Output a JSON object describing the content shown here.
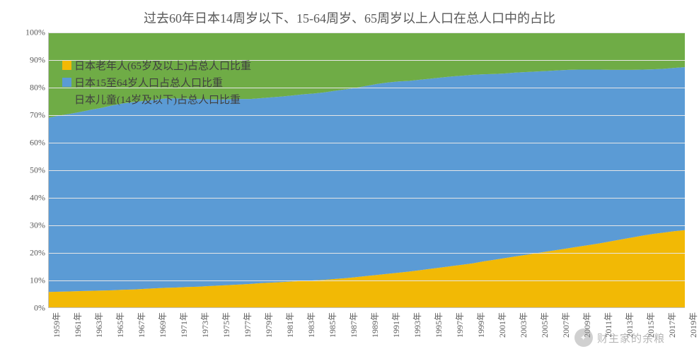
{
  "title": "过去60年日本14周岁以下、15-64周岁、65周岁以上人口在总人口中的占比",
  "title_fontsize": 18,
  "title_color": "#595959",
  "chart": {
    "type": "area-stacked",
    "background_color": "#ffffff",
    "grid_color": "#e6e6e6",
    "axis_color": "#bfbfbf",
    "tick_color": "#595959",
    "tick_fontsize": 12,
    "ylim": [
      0,
      100
    ],
    "ytick_step": 10,
    "y_tick_suffix": "%",
    "x_years": [
      1959,
      1960,
      1961,
      1962,
      1963,
      1964,
      1965,
      1966,
      1967,
      1968,
      1969,
      1970,
      1971,
      1972,
      1973,
      1974,
      1975,
      1976,
      1977,
      1978,
      1979,
      1980,
      1981,
      1982,
      1983,
      1984,
      1985,
      1986,
      1987,
      1988,
      1989,
      1990,
      1991,
      1992,
      1993,
      1994,
      1995,
      1996,
      1997,
      1998,
      1999,
      2000,
      2001,
      2002,
      2003,
      2004,
      2005,
      2006,
      2007,
      2008,
      2009,
      2010,
      2011,
      2012,
      2013,
      2014,
      2015,
      2016,
      2017,
      2018,
      2019
    ],
    "x_tick_indices": [
      0,
      2,
      4,
      6,
      8,
      10,
      12,
      14,
      16,
      18,
      20,
      22,
      24,
      26,
      28,
      30,
      32,
      34,
      36,
      38,
      40,
      42,
      44,
      46,
      48,
      50,
      52,
      54,
      56,
      58,
      60
    ],
    "x_tick_suffix": "年",
    "series": [
      {
        "key": "elderly",
        "label": "日本老年人(65岁及以上)占总人口比重",
        "color": "#f2b905",
        "values": [
          5.6,
          5.7,
          5.8,
          5.9,
          6.0,
          6.1,
          6.2,
          6.4,
          6.5,
          6.7,
          6.9,
          7.1,
          7.2,
          7.4,
          7.5,
          7.7,
          7.9,
          8.1,
          8.3,
          8.5,
          8.8,
          9.0,
          9.2,
          9.4,
          9.6,
          9.8,
          10.0,
          10.3,
          10.6,
          11.0,
          11.4,
          11.8,
          12.2,
          12.6,
          13.0,
          13.5,
          14.0,
          14.5,
          15.0,
          15.5,
          16.0,
          16.7,
          17.3,
          17.9,
          18.5,
          19.1,
          19.7,
          20.3,
          20.9,
          21.5,
          22.1,
          22.7,
          23.3,
          24.0,
          24.7,
          25.4,
          26.1,
          26.7,
          27.2,
          27.7,
          28.1
        ]
      },
      {
        "key": "working",
        "label": "日本15至64岁人口占总人口比重",
        "color": "#5b9bd5",
        "values": [
          63.4,
          64.1,
          64.6,
          65.2,
          65.9,
          66.5,
          67.3,
          67.8,
          68.2,
          68.4,
          68.6,
          68.9,
          68.8,
          68.5,
          68.3,
          68.0,
          67.7,
          67.6,
          67.5,
          67.3,
          67.3,
          67.4,
          67.5,
          67.7,
          67.9,
          68.0,
          68.2,
          68.5,
          68.7,
          68.9,
          69.2,
          69.5,
          69.6,
          69.6,
          69.4,
          69.3,
          69.2,
          69.1,
          69.0,
          68.8,
          68.6,
          68.1,
          67.6,
          67.2,
          66.9,
          66.5,
          66.1,
          65.7,
          65.3,
          64.9,
          64.4,
          63.8,
          63.2,
          62.4,
          61.7,
          61.0,
          60.4,
          59.9,
          59.6,
          59.4,
          59.3
        ]
      },
      {
        "key": "children",
        "label": "日本儿童(14岁及以下)占总人口比重",
        "color": "#6fac46",
        "values": [
          31.0,
          30.2,
          29.6,
          28.9,
          28.1,
          27.4,
          26.5,
          25.8,
          25.3,
          24.9,
          24.5,
          24.0,
          24.0,
          24.1,
          24.2,
          24.3,
          24.4,
          24.3,
          24.2,
          24.2,
          23.9,
          23.6,
          23.3,
          22.9,
          22.5,
          22.2,
          21.8,
          21.2,
          20.7,
          20.1,
          19.4,
          18.7,
          18.2,
          17.8,
          17.6,
          17.2,
          16.8,
          16.4,
          16.0,
          15.7,
          15.4,
          15.2,
          15.1,
          14.9,
          14.6,
          14.4,
          14.2,
          14.0,
          13.8,
          13.6,
          13.5,
          13.5,
          13.5,
          13.6,
          13.6,
          13.6,
          13.5,
          13.4,
          13.2,
          12.9,
          12.6
        ]
      }
    ],
    "legend": {
      "position": "top-left-inside",
      "fontsize": 15,
      "swatch_size": 13
    }
  },
  "watermark": {
    "text": "财主家的余粮",
    "color": "rgba(120,120,120,0.55)"
  }
}
